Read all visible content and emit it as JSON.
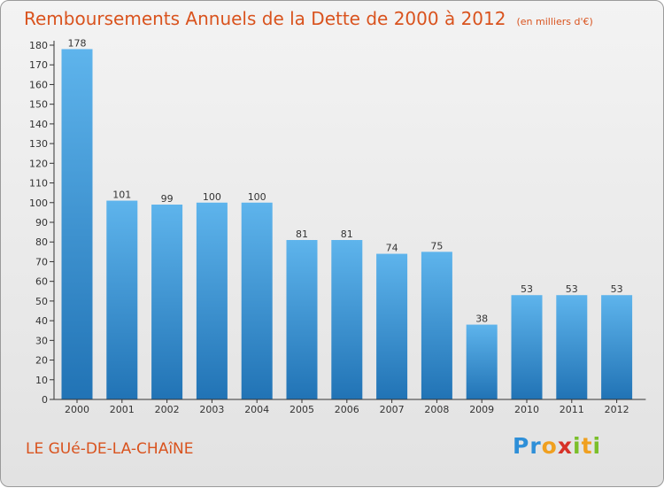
{
  "chart_data": {
    "type": "bar",
    "title": "Remboursements Annuels de la Dette de 2000 à 2012",
    "unit_note": "(en milliers d'€)",
    "categories": [
      "2000",
      "2001",
      "2002",
      "2003",
      "2004",
      "2005",
      "2006",
      "2007",
      "2008",
      "2009",
      "2010",
      "2011",
      "2012"
    ],
    "values": [
      178,
      101,
      99,
      100,
      100,
      81,
      81,
      74,
      75,
      38,
      53,
      53,
      53
    ],
    "ylim": [
      0,
      180
    ],
    "yticks": [
      0,
      10,
      20,
      30,
      40,
      50,
      60,
      70,
      80,
      90,
      100,
      110,
      120,
      130,
      140,
      150,
      160,
      170,
      180
    ],
    "xlabel": "",
    "ylabel": "",
    "grid": false,
    "legend": "none"
  },
  "footer": {
    "commune": "LE GUé-DE-LA-CHAîNE",
    "brand_letters": [
      "P",
      "r",
      "o",
      "x",
      "i",
      "t",
      "i"
    ]
  },
  "colors": {
    "bar_top": "#5eb4ec",
    "bar_bottom": "#2173b5",
    "title": "#d9531e",
    "axis": "#333333",
    "brand": [
      "#2e8fd8",
      "#2e8fd8",
      "#f0a020",
      "#d73228",
      "#7bbf2a",
      "#f0a020",
      "#7bbf2a"
    ]
  }
}
